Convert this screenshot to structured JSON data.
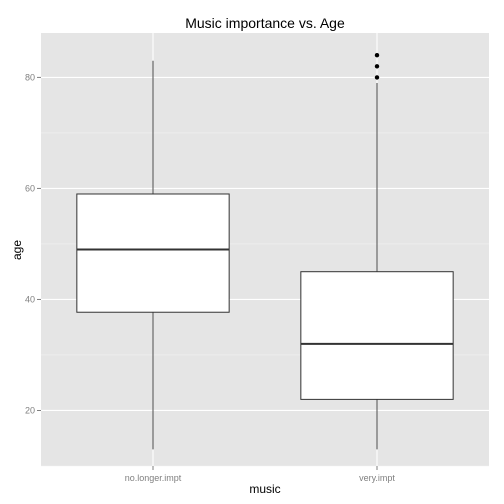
{
  "chart_data": {
    "type": "boxplot",
    "title": "Music importance vs. Age",
    "xlabel": "music",
    "ylabel": "age",
    "categories": [
      "no.longer.impt",
      "very.impt"
    ],
    "boxes": [
      {
        "category": "no.longer.impt",
        "whisker_low": 13,
        "q1": 37.7,
        "median": 49,
        "q3": 59,
        "whisker_high": 83,
        "outliers": []
      },
      {
        "category": "very.impt",
        "whisker_low": 13,
        "q1": 22,
        "median": 32,
        "q3": 45,
        "whisker_high": 79,
        "outliers": [
          80,
          82,
          84
        ]
      }
    ],
    "ylim": [
      10,
      88
    ],
    "yticks": [
      20,
      40,
      60,
      80
    ],
    "grid": true,
    "legend": "none",
    "colors": {
      "panel_bg": "#e5e5e5",
      "grid_major": "#ffffff",
      "grid_minor": "#f2f2f2",
      "box_fill": "#ffffff",
      "box_stroke": "#333333",
      "whisker": "#4d4d4d",
      "outlier": "#000000",
      "tick_label": "#7f7f7f",
      "text": "#000000"
    }
  }
}
